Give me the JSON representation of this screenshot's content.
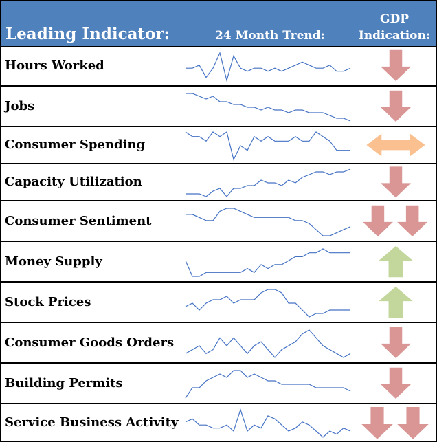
{
  "header": {
    "leading_indicator": "Leading Indicator:",
    "trend": "24 Month Trend:",
    "gdp": "GDP",
    "indication": "Indication:"
  },
  "colors": {
    "header_bg": "#4f81bd",
    "sparkline": "#4472c4",
    "down": "#d99694",
    "up": "#c3d69b",
    "neutral": "#fac090"
  },
  "rows": [
    {
      "label": "Hours Worked",
      "indication": "down",
      "trend": [
        5,
        5,
        6,
        2,
        5,
        10,
        1,
        9,
        5,
        4,
        5,
        5,
        4,
        5,
        4,
        5,
        6,
        7,
        6,
        5,
        5,
        6,
        4,
        4,
        5
      ]
    },
    {
      "label": "Jobs",
      "indication": "down",
      "trend": [
        10,
        10,
        9,
        8,
        9,
        7,
        7,
        6,
        6,
        5,
        5,
        4,
        5,
        4,
        4,
        3,
        4,
        4,
        3,
        3,
        3,
        2,
        1,
        1,
        0
      ]
    },
    {
      "label": "Consumer Spending",
      "indication": "neutral",
      "trend": [
        6,
        5,
        5,
        4,
        6,
        5,
        6,
        0,
        3,
        2,
        5,
        4,
        5,
        4,
        4,
        4,
        5,
        4,
        4,
        6,
        5,
        4,
        2,
        2,
        2
      ]
    },
    {
      "label": "Capacity Utilization",
      "indication": "down",
      "trend": [
        1,
        1,
        1,
        0,
        2,
        3,
        0,
        3,
        3,
        4,
        4,
        6,
        5,
        5,
        4,
        6,
        5,
        7,
        8,
        9,
        9,
        8,
        9,
        9,
        10
      ]
    },
    {
      "label": "Consumer Sentiment",
      "indication": "double-down",
      "trend": [
        7,
        7,
        6,
        5,
        5,
        8,
        9,
        9,
        8,
        7,
        6,
        6,
        6,
        6,
        6,
        6,
        5,
        5,
        4,
        2,
        0,
        0,
        1,
        2,
        3
      ]
    },
    {
      "label": "Money Supply",
      "indication": "up",
      "trend": [
        4,
        0,
        0,
        1,
        1,
        1,
        1,
        1,
        1,
        2,
        1,
        3,
        2,
        3,
        3,
        4,
        5,
        5,
        6,
        6,
        7,
        6,
        6,
        6,
        6
      ]
    },
    {
      "label": "Stock Prices",
      "indication": "up",
      "trend": [
        3,
        4,
        2,
        4,
        5,
        5,
        6,
        4,
        5,
        5,
        5,
        7,
        8,
        8,
        7,
        4,
        4,
        2,
        0,
        1,
        1,
        2,
        2,
        2,
        2
      ]
    },
    {
      "label": "Consumer Goods Orders",
      "indication": "down",
      "trend": [
        2,
        3,
        4,
        2,
        3,
        6,
        4,
        6,
        4,
        2,
        4,
        5,
        3,
        1,
        3,
        4,
        5,
        7,
        8,
        6,
        4,
        3,
        2,
        1,
        2
      ]
    },
    {
      "label": "Building Permits",
      "indication": "down",
      "trend": [
        0,
        3,
        3,
        5,
        6,
        7,
        6,
        8,
        8,
        6,
        7,
        6,
        5,
        5,
        4,
        4,
        4,
        4,
        4,
        3,
        3,
        3,
        3,
        3,
        2
      ]
    },
    {
      "label": "Service Business Activity",
      "indication": "double-down",
      "trend": [
        6,
        7,
        5,
        5,
        4,
        4,
        5,
        3,
        10,
        3,
        5,
        4,
        8,
        7,
        5,
        3,
        4,
        6,
        5,
        3,
        1,
        3,
        2,
        4,
        3
      ]
    }
  ]
}
